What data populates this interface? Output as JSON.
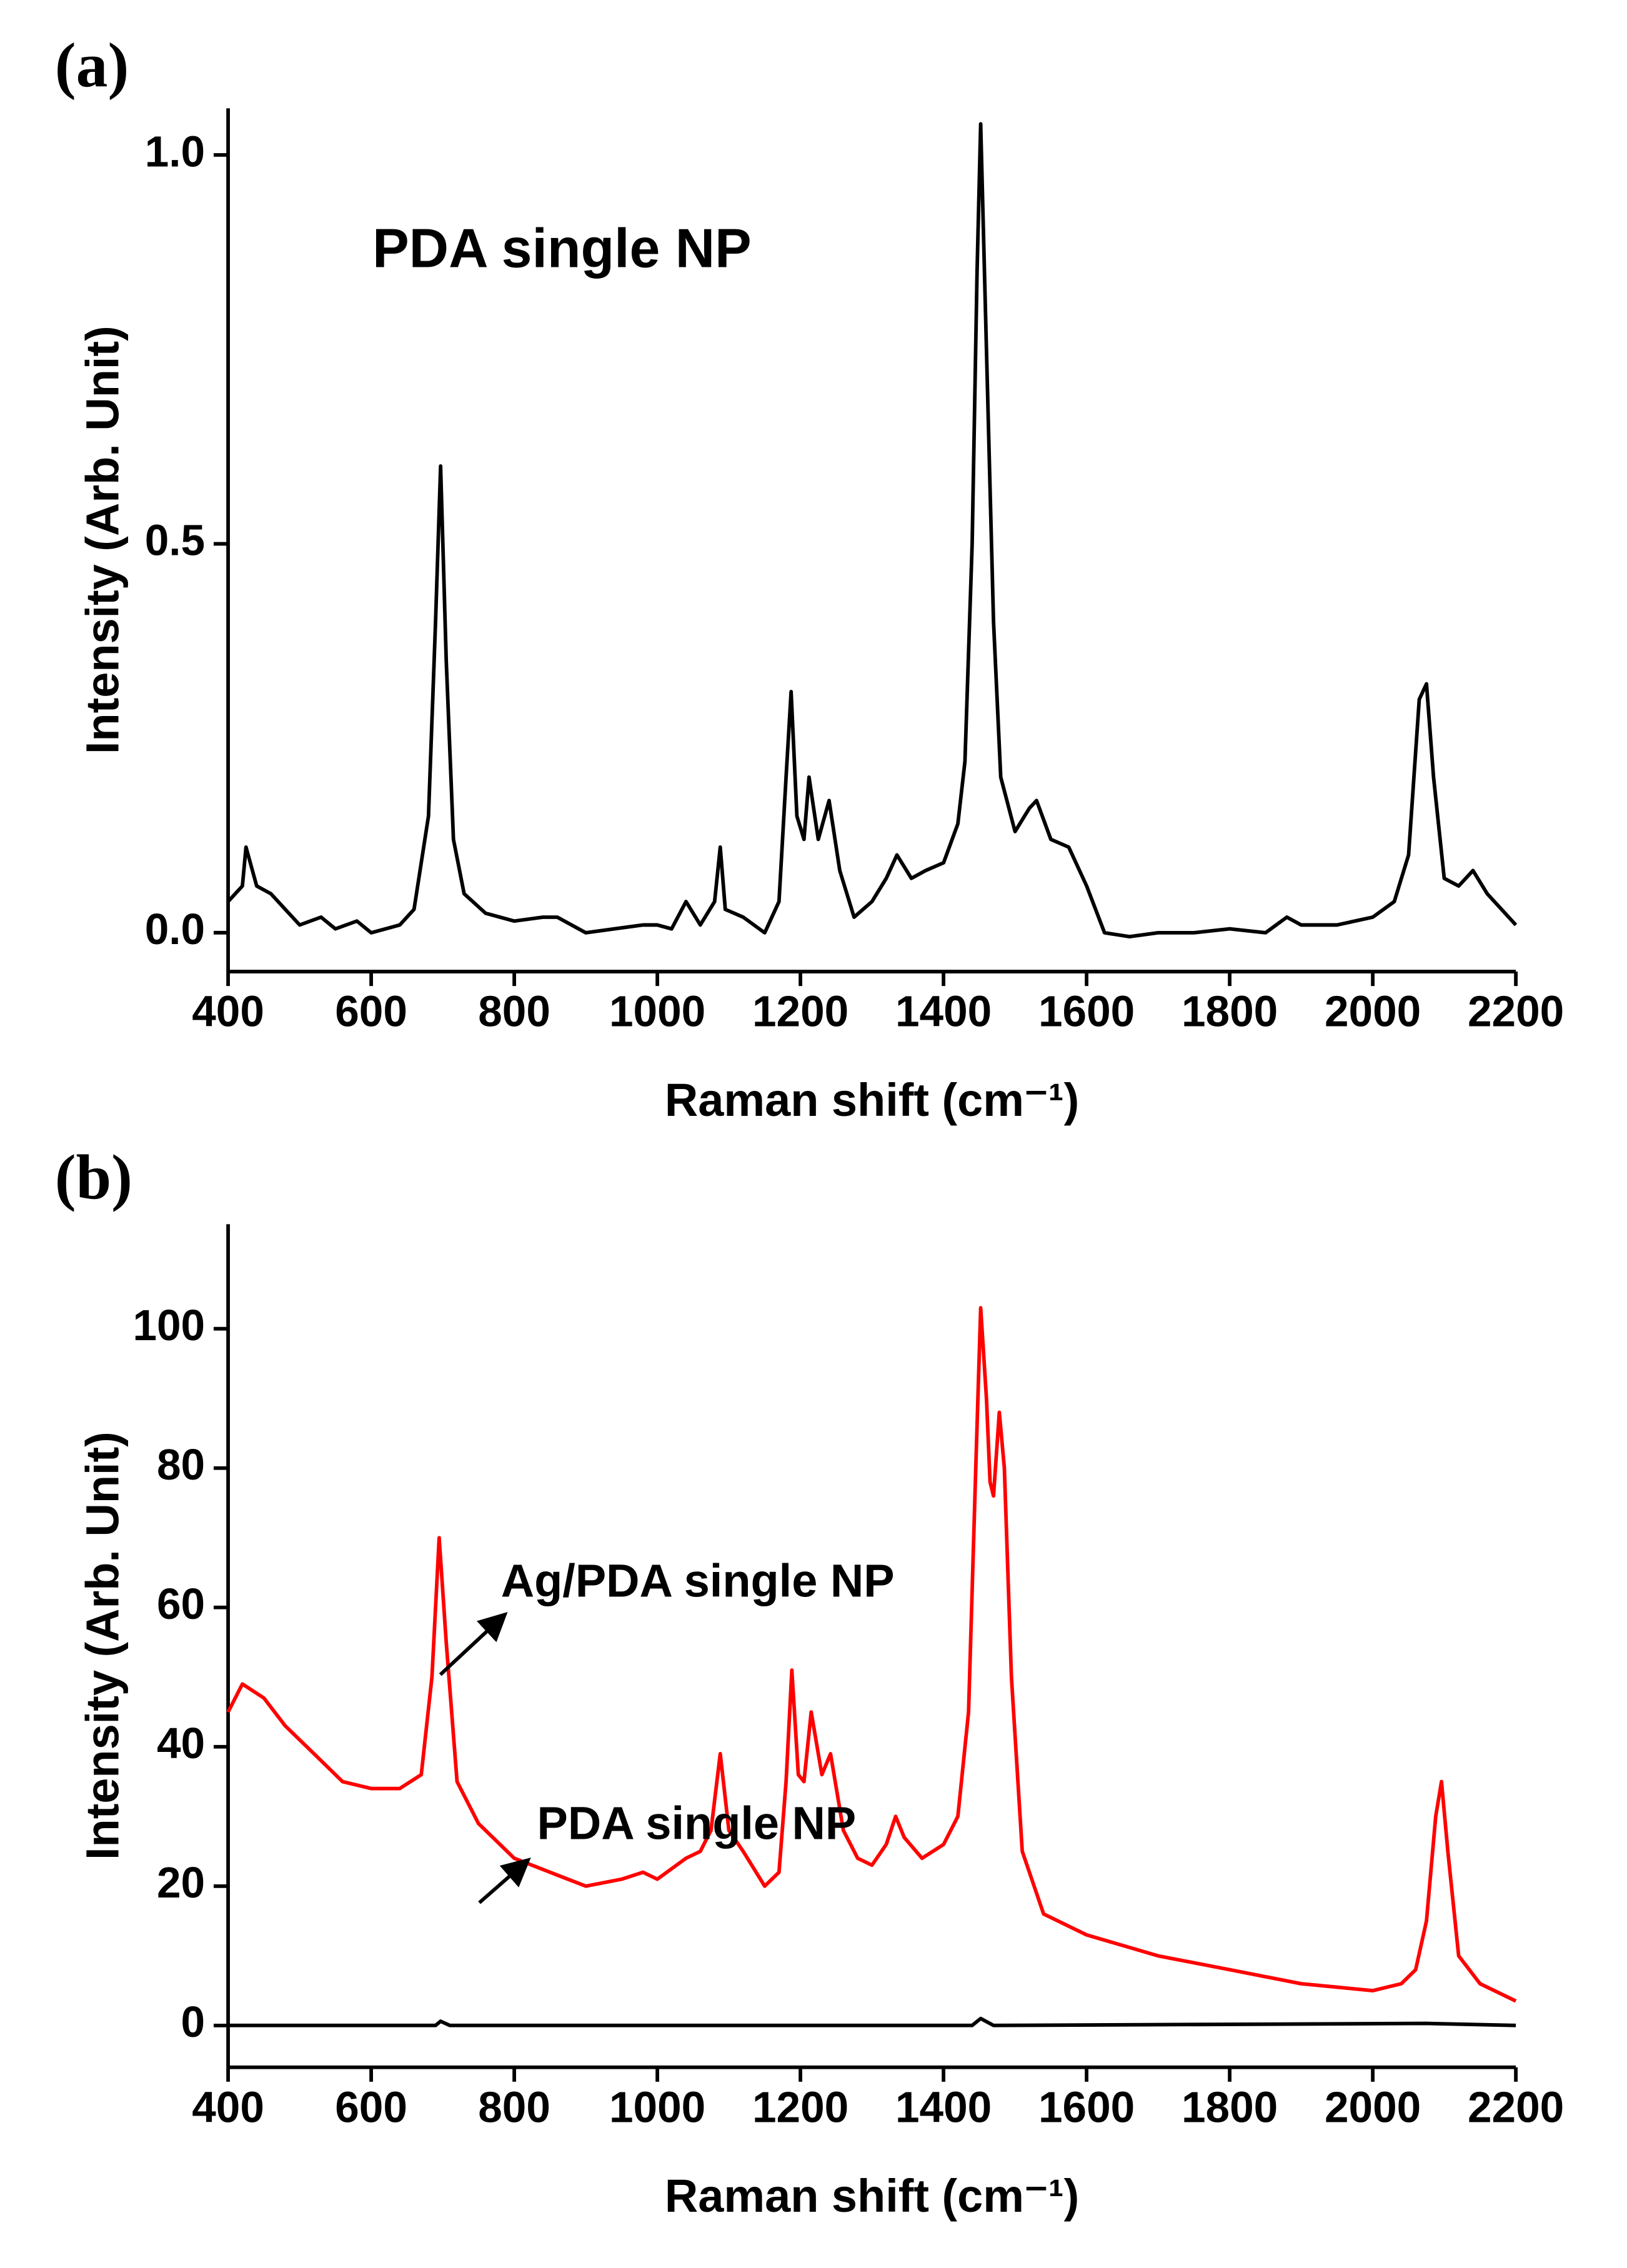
{
  "chart_data": [
    {
      "type": "line",
      "panel_label": "(a)",
      "title": "PDA single NP",
      "x_label": "Raman shift (cm⁻¹)",
      "y_label": "Intensity (Arb. Unit)",
      "xlim": [
        400,
        2200
      ],
      "xticks": [
        400,
        600,
        800,
        1000,
        1200,
        1400,
        1600,
        1800,
        2000,
        2200
      ],
      "ylim": [
        -0.05,
        1.06
      ],
      "yticks": [
        {
          "value": 0,
          "label": "0.0"
        },
        {
          "value": 0.5,
          "label": "0.5"
        },
        {
          "value": 1.0,
          "label": "1.0"
        }
      ],
      "series": [
        {
          "name": "PDA single NP",
          "color": "#000000",
          "x": [
            400,
            420,
            425,
            440,
            460,
            480,
            500,
            530,
            550,
            580,
            600,
            640,
            660,
            680,
            690,
            697,
            705,
            715,
            730,
            760,
            800,
            840,
            860,
            900,
            940,
            980,
            1000,
            1020,
            1040,
            1060,
            1080,
            1088,
            1095,
            1120,
            1150,
            1170,
            1180,
            1187,
            1195,
            1205,
            1212,
            1225,
            1240,
            1255,
            1275,
            1300,
            1320,
            1335,
            1355,
            1375,
            1400,
            1420,
            1430,
            1440,
            1447,
            1452,
            1460,
            1470,
            1480,
            1500,
            1520,
            1530,
            1550,
            1575,
            1600,
            1625,
            1660,
            1700,
            1750,
            1800,
            1850,
            1880,
            1900,
            1950,
            2000,
            2030,
            2050,
            2065,
            2075,
            2085,
            2100,
            2120,
            2140,
            2160,
            2180,
            2200
          ],
          "values": [
            0.04,
            0.06,
            0.11,
            0.06,
            0.05,
            0.03,
            0.01,
            0.02,
            0.005,
            0.015,
            0,
            0.01,
            0.03,
            0.15,
            0.4,
            0.6,
            0.35,
            0.12,
            0.05,
            0.025,
            0.015,
            0.02,
            0.02,
            0,
            0.005,
            0.01,
            0.01,
            0.005,
            0.04,
            0.01,
            0.04,
            0.11,
            0.03,
            0.02,
            0,
            0.04,
            0.2,
            0.31,
            0.15,
            0.12,
            0.2,
            0.12,
            0.17,
            0.08,
            0.02,
            0.04,
            0.07,
            0.1,
            0.07,
            0.08,
            0.09,
            0.14,
            0.22,
            0.5,
            0.85,
            1.04,
            0.75,
            0.4,
            0.2,
            0.13,
            0.16,
            0.17,
            0.12,
            0.11,
            0.06,
            0,
            -0.005,
            0,
            0,
            0.005,
            0,
            0.02,
            0.01,
            0.01,
            0.02,
            0.04,
            0.1,
            0.3,
            0.32,
            0.2,
            0.07,
            0.06,
            0.08,
            0.05,
            0.03,
            0.01
          ]
        }
      ]
    },
    {
      "type": "line",
      "panel_label": "(b)",
      "x_label": "Raman shift (cm⁻¹)",
      "y_label": "Intensity (Arb. Unit)",
      "xlim": [
        400,
        2200
      ],
      "xticks": [
        400,
        600,
        800,
        1000,
        1200,
        1400,
        1600,
        1800,
        2000,
        2200
      ],
      "ylim": [
        -6,
        115
      ],
      "yticks": [
        0,
        20,
        40,
        60,
        80,
        100
      ],
      "annotations": [
        "Ag/PDA single NP",
        "PDA single NP"
      ],
      "series": [
        {
          "name": "Ag/PDA single NP",
          "color": "#ff0000",
          "x": [
            400,
            420,
            450,
            480,
            520,
            560,
            600,
            640,
            670,
            685,
            695,
            705,
            720,
            750,
            800,
            850,
            900,
            950,
            980,
            1000,
            1040,
            1060,
            1075,
            1088,
            1100,
            1120,
            1150,
            1170,
            1180,
            1188,
            1197,
            1205,
            1215,
            1230,
            1242,
            1260,
            1280,
            1300,
            1320,
            1333,
            1345,
            1370,
            1400,
            1420,
            1435,
            1445,
            1452,
            1460,
            1465,
            1470,
            1478,
            1485,
            1495,
            1510,
            1540,
            1600,
            1700,
            1800,
            1900,
            1950,
            2000,
            2040,
            2060,
            2075,
            2088,
            2096,
            2105,
            2120,
            2150,
            2200
          ],
          "values": [
            45,
            49,
            47,
            43,
            39,
            35,
            34,
            34,
            36,
            50,
            70,
            55,
            35,
            29,
            24,
            22,
            20,
            21,
            22,
            21,
            24,
            25,
            28,
            39,
            28,
            25,
            20,
            22,
            35,
            51,
            36,
            35,
            45,
            36,
            39,
            28,
            24,
            23,
            26,
            30,
            27,
            24,
            26,
            30,
            45,
            80,
            103,
            90,
            78,
            76,
            88,
            80,
            50,
            25,
            16,
            13,
            10,
            8,
            6,
            5.5,
            5,
            6,
            8,
            15,
            30,
            35,
            25,
            10,
            6,
            3.5
          ]
        },
        {
          "name": "PDA single NP",
          "color": "#000000",
          "x": [
            400,
            690,
            697,
            710,
            1440,
            1452,
            1470,
            2075,
            2200
          ],
          "values": [
            0,
            0,
            0.6,
            0,
            0,
            1,
            0,
            0.3,
            0
          ]
        }
      ]
    }
  ]
}
